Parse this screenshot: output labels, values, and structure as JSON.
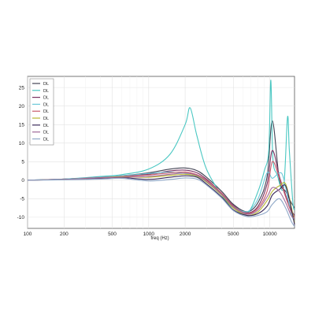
{
  "chart_data": {
    "type": "line",
    "title": "",
    "xlabel": "freq (Hz)",
    "ylabel": "",
    "xscale": "log",
    "xlim": [
      100,
      16000
    ],
    "ylim": [
      -13,
      28
    ],
    "xticks": [
      100,
      200,
      500,
      1000,
      2000,
      5000,
      10000
    ],
    "xtick_labels": [
      "100",
      "200",
      "500",
      "1000",
      "2000",
      "5000",
      "10000"
    ],
    "yticks": [
      -10,
      -5,
      0,
      5,
      10,
      15,
      20,
      25
    ],
    "ytick_labels": [
      "-10",
      "-5",
      "0",
      "5",
      "10",
      "15",
      "20",
      "25"
    ],
    "grid": true,
    "legend_position": "top-left",
    "series": [
      {
        "name": "DL",
        "color": "#444455",
        "x": [
          100,
          200,
          400,
          600,
          1000,
          1500,
          2000,
          2500,
          3000,
          4000,
          5000,
          6500,
          8000,
          9500,
          10500,
          12000,
          13500,
          15000,
          16000
        ],
        "y": [
          0,
          0.3,
          0.8,
          1.2,
          2.0,
          3.0,
          3.3,
          2.6,
          0.8,
          -3.0,
          -6.5,
          -8.5,
          -6.0,
          1.0,
          16,
          0,
          -3.0,
          -6.0,
          -7.5
        ]
      },
      {
        "name": "DL",
        "color": "#49c7c2",
        "x": [
          100,
          200,
          400,
          600,
          1000,
          1500,
          2000,
          2200,
          2500,
          3000,
          4000,
          5000,
          6500,
          8000,
          9000,
          9800,
          10200,
          10600,
          11500,
          13000,
          14000,
          14500,
          15500,
          16000
        ],
        "y": [
          0,
          0.3,
          1.0,
          1.5,
          3.0,
          7.0,
          15.0,
          19.5,
          12.0,
          3.0,
          -4.0,
          -7.5,
          -9.0,
          -3.0,
          2.5,
          8.0,
          27.0,
          6.0,
          1.5,
          -2.0,
          17.0,
          8.0,
          -6.0,
          -8.0
        ]
      },
      {
        "name": "DL",
        "color": "#7a3060",
        "x": [
          100,
          200,
          400,
          600,
          1000,
          1500,
          2000,
          2500,
          3000,
          4000,
          5000,
          6500,
          8000,
          9500,
          10500,
          12000,
          13500,
          15000,
          16000
        ],
        "y": [
          0,
          0.3,
          0.8,
          1.1,
          1.6,
          2.5,
          2.7,
          2.0,
          0.3,
          -3.5,
          -6.8,
          -8.8,
          -7.0,
          -1.0,
          8.0,
          1.0,
          -4.0,
          -8.0,
          -9.5
        ]
      },
      {
        "name": "DL",
        "color": "#6cc8d8",
        "x": [
          100,
          200,
          400,
          600,
          1000,
          1500,
          2000,
          2500,
          3000,
          4000,
          5000,
          6500,
          8000,
          9500,
          10500,
          12000,
          13000,
          15000,
          16000
        ],
        "y": [
          0,
          0.3,
          0.8,
          1.2,
          1.8,
          2.2,
          1.8,
          1.0,
          -0.5,
          -4.0,
          -7.0,
          -8.5,
          -5.0,
          2.0,
          0.5,
          2.0,
          0.5,
          -9.0,
          -11.0
        ]
      },
      {
        "name": "DL",
        "color": "#c85a6a",
        "x": [
          100,
          200,
          400,
          600,
          1000,
          1500,
          2000,
          2500,
          3000,
          4000,
          5000,
          6500,
          8000,
          9500,
          10500,
          12000,
          13500,
          15000,
          16000
        ],
        "y": [
          0,
          0.2,
          0.7,
          1.0,
          1.4,
          2.0,
          2.2,
          1.5,
          0,
          -3.5,
          -7.0,
          -9.0,
          -7.5,
          -3.0,
          5.0,
          0.5,
          -4.5,
          -8.5,
          -10.0
        ]
      },
      {
        "name": "DL",
        "color": "#b8b830",
        "x": [
          100,
          200,
          400,
          600,
          1000,
          1500,
          2000,
          2500,
          3000,
          4000,
          5000,
          6500,
          8000,
          9500,
          10500,
          12000,
          13500,
          15000,
          16000
        ],
        "y": [
          0,
          0.2,
          0.6,
          0.9,
          0.8,
          1.3,
          1.6,
          1.1,
          -0.5,
          -4.0,
          -7.5,
          -9.5,
          -8.5,
          -5.5,
          -3.0,
          -1.5,
          -1.0,
          -7.0,
          -11.5
        ]
      },
      {
        "name": "DL",
        "color": "#3a2a5a",
        "x": [
          100,
          200,
          400,
          600,
          1000,
          1500,
          2000,
          2500,
          3000,
          4000,
          5000,
          6500,
          8000,
          9500,
          10500,
          12000,
          13500,
          15000,
          16000
        ],
        "y": [
          0,
          0.2,
          0.5,
          0.7,
          0.2,
          0.8,
          1.2,
          0.8,
          -1.0,
          -4.5,
          -8.0,
          -9.5,
          -9.0,
          -7.0,
          -4.0,
          -2.5,
          -1.5,
          -7.5,
          -12.0
        ]
      },
      {
        "name": "DL",
        "color": "#a06a9a",
        "x": [
          100,
          200,
          400,
          600,
          1000,
          1500,
          2000,
          2500,
          3000,
          4000,
          5000,
          6500,
          8000,
          9500,
          10500,
          12000,
          13500,
          15000,
          16000
        ],
        "y": [
          0,
          0.2,
          0.6,
          0.8,
          1.0,
          1.6,
          1.9,
          1.3,
          -0.3,
          -3.8,
          -7.2,
          -9.2,
          -8.0,
          -4.5,
          -2.0,
          -3.0,
          -6.0,
          -9.5,
          -10.5
        ]
      },
      {
        "name": "DL",
        "color": "#8fa8c8",
        "x": [
          100,
          200,
          400,
          600,
          1000,
          1500,
          2000,
          2500,
          3000,
          4000,
          5000,
          6500,
          8000,
          9500,
          10500,
          12000,
          13500,
          15000,
          16000
        ],
        "y": [
          0,
          0.1,
          0.3,
          0.5,
          -0.2,
          0.2,
          0.6,
          0.3,
          -1.3,
          -4.8,
          -8.2,
          -9.8,
          -9.5,
          -8.5,
          -6.5,
          -5.0,
          -7.5,
          -11.0,
          -12.5
        ]
      }
    ]
  }
}
